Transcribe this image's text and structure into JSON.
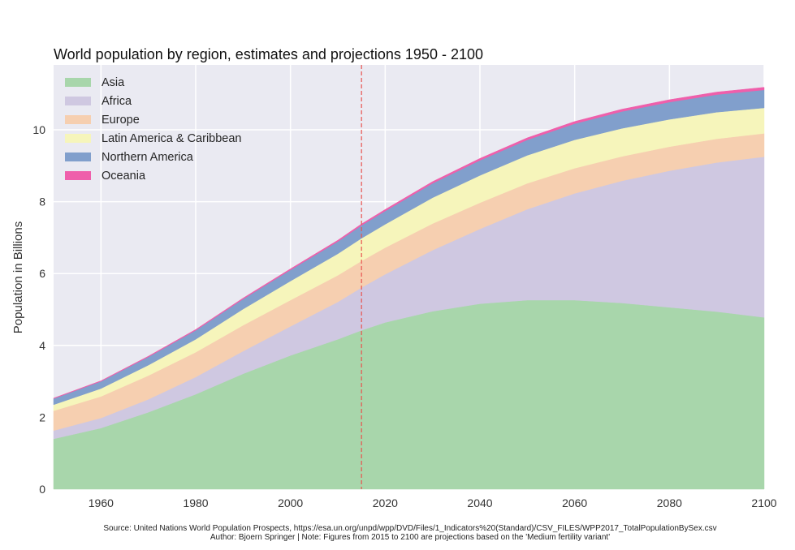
{
  "chart_data": {
    "type": "area",
    "stacked": true,
    "title": "World population by region, estimates and projections 1950 - 2100",
    "xlabel": "",
    "ylabel": "Population in Billions",
    "xlim": [
      1950,
      2100
    ],
    "ylim": [
      0,
      11.8
    ],
    "xticks": [
      1960,
      1980,
      2000,
      2020,
      2040,
      2060,
      2080,
      2100
    ],
    "yticks": [
      0,
      2,
      4,
      6,
      8,
      10
    ],
    "grid": true,
    "legend_position": "top-left",
    "background": "#eaeaf2",
    "vline": {
      "x": 2015,
      "color": "#e8534f",
      "style": "dashed"
    },
    "x": [
      1950,
      1960,
      1970,
      1980,
      1990,
      2000,
      2010,
      2015,
      2020,
      2030,
      2040,
      2050,
      2060,
      2070,
      2080,
      2090,
      2100
    ],
    "series": [
      {
        "name": "Asia",
        "color": "#a8d6ab",
        "values": [
          1.4,
          1.7,
          2.14,
          2.64,
          3.21,
          3.72,
          4.17,
          4.42,
          4.64,
          4.95,
          5.16,
          5.26,
          5.26,
          5.18,
          5.06,
          4.94,
          4.78
        ]
      },
      {
        "name": "Africa",
        "color": "#cfc8e1",
        "values": [
          0.23,
          0.28,
          0.36,
          0.48,
          0.63,
          0.81,
          1.04,
          1.19,
          1.34,
          1.7,
          2.08,
          2.53,
          2.97,
          3.4,
          3.8,
          4.15,
          4.47
        ]
      },
      {
        "name": "Europe",
        "color": "#f6cfb0",
        "values": [
          0.55,
          0.6,
          0.66,
          0.69,
          0.72,
          0.73,
          0.74,
          0.74,
          0.74,
          0.74,
          0.73,
          0.72,
          0.7,
          0.68,
          0.67,
          0.66,
          0.65
        ]
      },
      {
        "name": "Latin America & Caribbean",
        "color": "#f6f5bb",
        "values": [
          0.17,
          0.22,
          0.29,
          0.36,
          0.45,
          0.53,
          0.6,
          0.63,
          0.65,
          0.72,
          0.76,
          0.78,
          0.79,
          0.78,
          0.76,
          0.74,
          0.71
        ]
      },
      {
        "name": "Northern America",
        "color": "#819fcc",
        "values": [
          0.17,
          0.2,
          0.23,
          0.25,
          0.28,
          0.31,
          0.34,
          0.36,
          0.37,
          0.4,
          0.42,
          0.43,
          0.45,
          0.47,
          0.48,
          0.49,
          0.5
        ]
      },
      {
        "name": "Oceania",
        "color": "#ef5fab",
        "values": [
          0.013,
          0.016,
          0.02,
          0.023,
          0.027,
          0.031,
          0.037,
          0.04,
          0.043,
          0.048,
          0.053,
          0.057,
          0.061,
          0.064,
          0.067,
          0.07,
          0.072
        ]
      }
    ]
  },
  "footer": {
    "source": "Source: United Nations World Population Prospects, https://esa.un.org/unpd/wpp/DVD/Files/1_Indicators%20(Standard)/CSV_FILES/WPP2017_TotalPopulationBySex.csv",
    "note": "Author: Bjoern Springer | Note: Figures from 2015 to 2100 are projections based on the 'Medium fertility variant'"
  }
}
